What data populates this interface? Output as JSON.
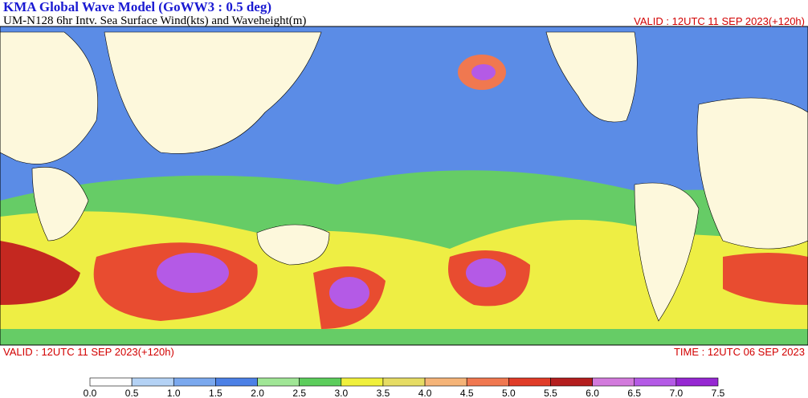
{
  "header": {
    "title": "KMA  Global Wave Model (GoWW3 : 0.5 deg)",
    "subtitle": "UM-N128  6hr Intv. Sea Surface Wind(kts) and Waveheight(m)",
    "valid_top": "VALID : 12UTC 11 SEP 2023(+120h)"
  },
  "footer": {
    "valid": "VALID : 12UTC 11 SEP 2023(+120h)",
    "time": "TIME : 12UTC 06 SEP 2023"
  },
  "colorbar": {
    "labels": [
      "0.0",
      "0.5",
      "1.0",
      "1.5",
      "2.0",
      "2.5",
      "3.0",
      "3.5",
      "4.0",
      "4.5",
      "5.0",
      "5.5",
      "6.0",
      "6.5",
      "7.0",
      "7.5"
    ],
    "colors": [
      "#ffffff",
      "#b4d2f5",
      "#7aa8ee",
      "#4c80e6",
      "#a0e696",
      "#5ccd5c",
      "#f0f03c",
      "#e6dc64",
      "#f5b478",
      "#f07850",
      "#e03c28",
      "#b41e1e",
      "#d27adc",
      "#b45ae6",
      "#9628d2"
    ]
  }
}
